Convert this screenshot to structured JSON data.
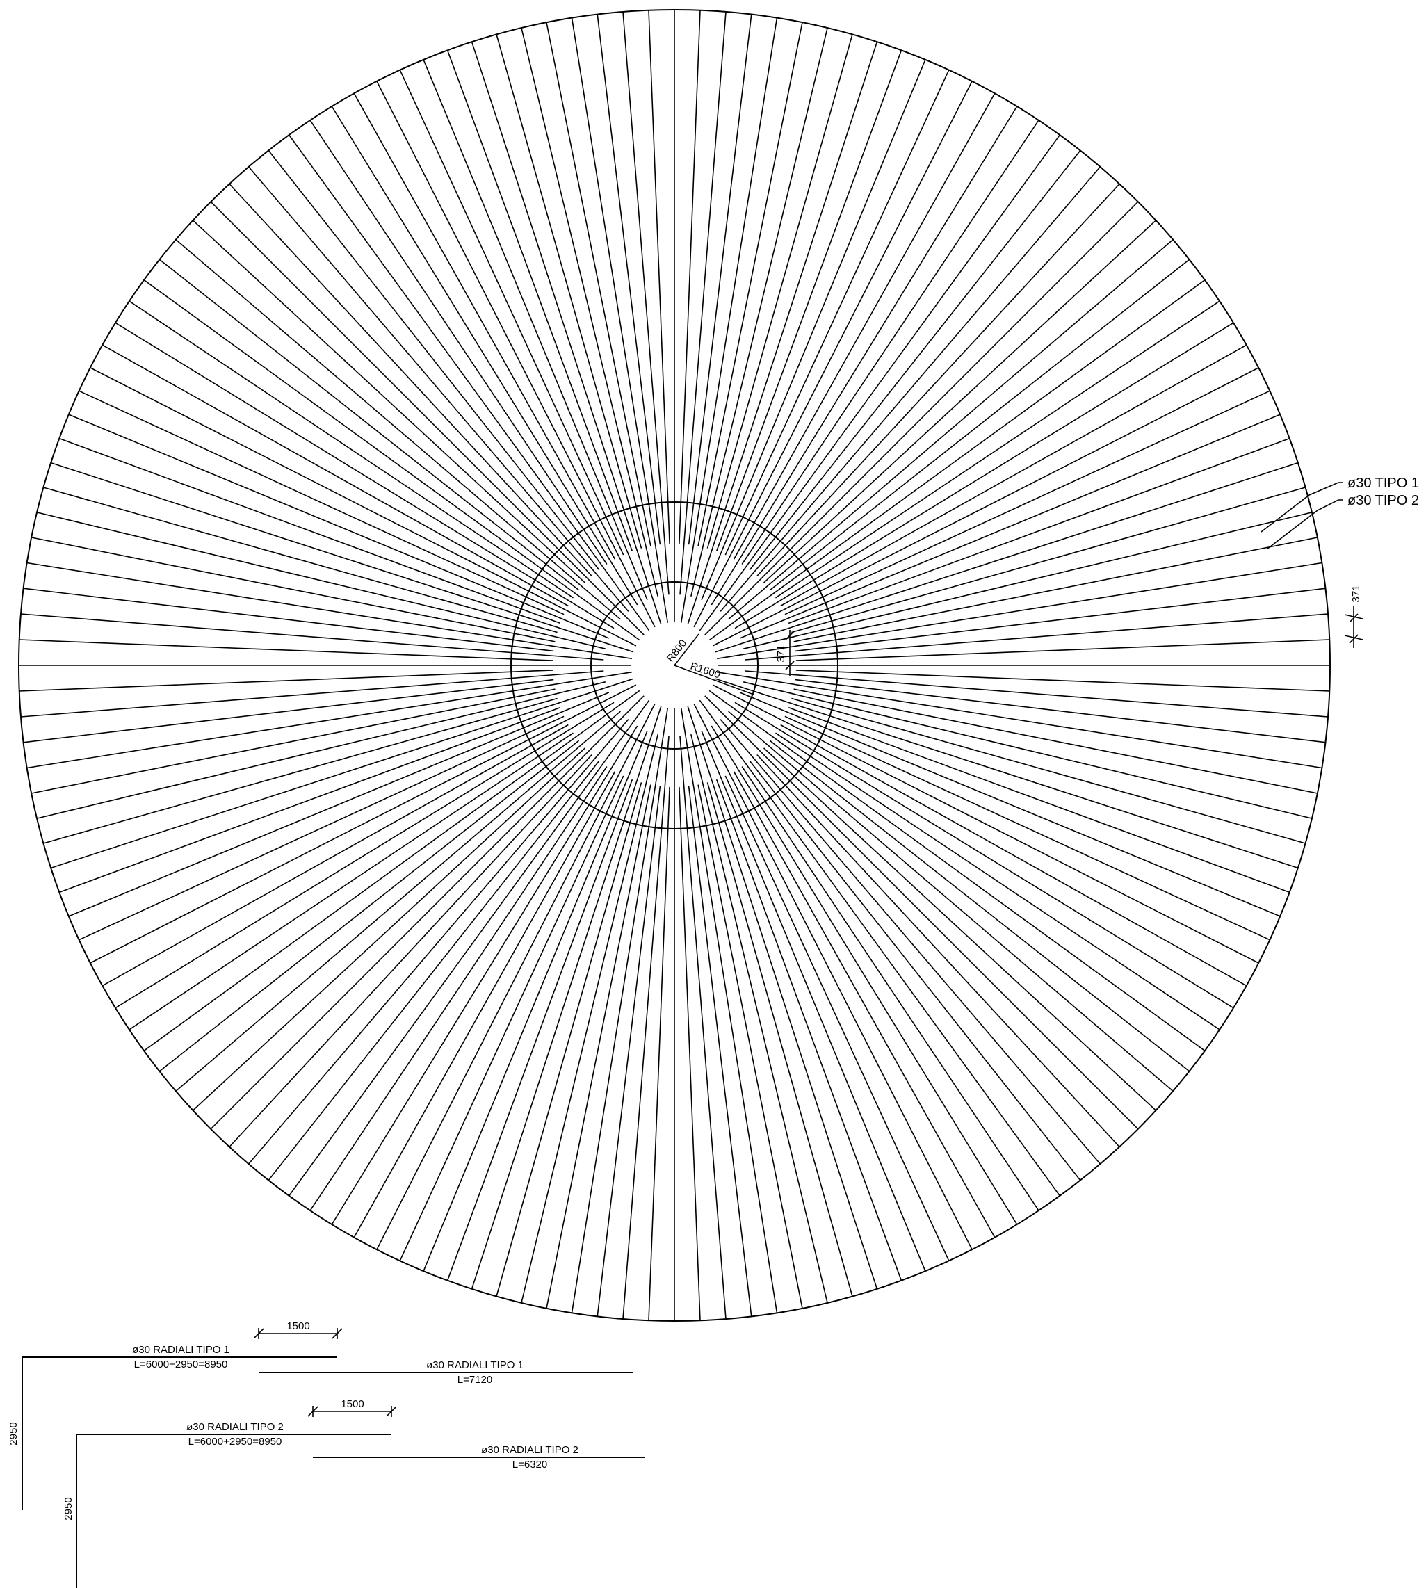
{
  "radial_plan": {
    "radius_labels": {
      "inner": "R800",
      "middle": "R1600"
    },
    "small_dim": "371",
    "side_dim": "371",
    "callouts": {
      "tipo1": "ø30 TIPO 1",
      "tipo2": "ø30 TIPO 2"
    }
  },
  "bar_schedule": {
    "tipo1_bent": {
      "title": "ø30 RADIALI TIPO 1",
      "length": "L=6000+2950=8950",
      "dim_top": "1500",
      "dim_leg": "2950"
    },
    "tipo1_straight": {
      "title": "ø30 RADIALI TIPO 1",
      "length": "L=7120"
    },
    "tipo2_bent": {
      "title": "ø30 RADIALI TIPO 2",
      "length": "L=6000+2950=8950",
      "dim_top": "1500",
      "dim_leg": "2950"
    },
    "tipo2_straight": {
      "title": "ø30 RADIALI TIPO 2",
      "length": "L=6320"
    }
  }
}
